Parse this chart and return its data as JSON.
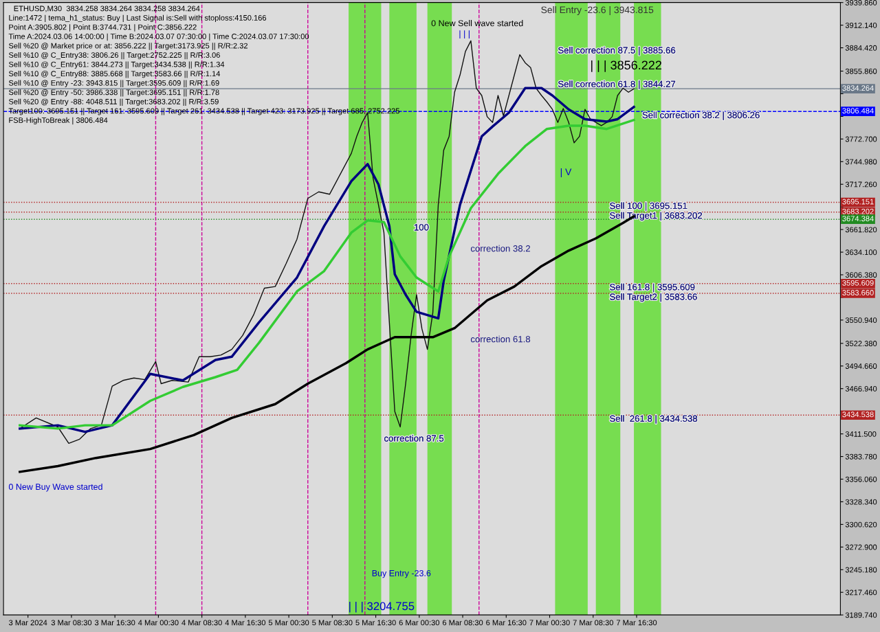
{
  "chart_data": {
    "type": "line",
    "title": "ETHUSD,M30  3834.258 3834.264 3834.258 3834.264",
    "x": [
      "2024-03-02T23:00",
      "2024-03-03T02:00",
      "2024-03-03T06:00",
      "2024-03-03T08:00",
      "2024-03-03T10:00",
      "2024-03-03T12:00",
      "2024-03-03T14:00",
      "2024-03-03T16:00",
      "2024-03-03T18:00",
      "2024-03-03T20:00",
      "2024-03-03T22:00",
      "2024-03-04T00:00",
      "2024-03-04T01:00",
      "2024-03-04T03:00",
      "2024-03-04T06:00",
      "2024-03-04T08:00",
      "2024-03-04T10:00",
      "2024-03-04T12:00",
      "2024-03-04T14:00",
      "2024-03-04T16:00",
      "2024-03-04T18:00",
      "2024-03-04T20:00",
      "2024-03-04T22:00",
      "2024-03-05T00:00",
      "2024-03-05T02:00",
      "2024-03-05T04:00",
      "2024-03-05T06:00",
      "2024-03-05T08:00",
      "2024-03-05T10:00",
      "2024-03-05T12:00",
      "2024-03-05T13:00",
      "2024-03-05T14:00",
      "2024-03-05T15:00",
      "2024-03-05T16:00",
      "2024-03-05T17:00",
      "2024-03-05T18:00",
      "2024-03-05T19:00",
      "2024-03-05T20:00",
      "2024-03-05T21:00",
      "2024-03-05T22:00",
      "2024-03-05T23:00",
      "2024-03-06T00:00",
      "2024-03-06T01:00",
      "2024-03-06T02:00",
      "2024-03-06T03:00",
      "2024-03-06T04:00",
      "2024-03-06T05:00",
      "2024-03-06T06:00",
      "2024-03-06T07:00",
      "2024-03-06T08:00",
      "2024-03-06T09:00",
      "2024-03-06T10:00",
      "2024-03-06T11:00",
      "2024-03-06T12:00",
      "2024-03-06T13:00",
      "2024-03-06T14:00",
      "2024-03-06T15:00",
      "2024-03-06T16:00",
      "2024-03-06T17:00",
      "2024-03-06T18:00",
      "2024-03-06T19:00",
      "2024-03-06T20:00",
      "2024-03-06T21:00",
      "2024-03-06T22:00",
      "2024-03-06T23:00",
      "2024-03-07T00:00",
      "2024-03-07T01:00",
      "2024-03-07T02:00",
      "2024-03-07T03:00",
      "2024-03-07T04:00",
      "2024-03-07T05:00",
      "2024-03-07T06:00",
      "2024-03-07T07:00",
      "2024-03-07T08:00",
      "2024-03-07T09:00",
      "2024-03-07T10:00",
      "2024-03-07T11:00",
      "2024-03-07T12:00",
      "2024-03-07T13:00",
      "2024-03-07T14:00",
      "2024-03-07T15:00",
      "2024-03-07T16:00"
    ],
    "series": [
      {
        "color": "#111111",
        "values": [
          3418,
          3431,
          3420,
          3400,
          3405,
          3418,
          3422,
          3470,
          3477,
          3480,
          3478,
          3500,
          3473,
          3477,
          3475,
          3506,
          3506,
          3508,
          3515,
          3532,
          3557,
          3590,
          3592,
          3620,
          3650,
          3700,
          3708,
          3705,
          3730,
          3755,
          3776,
          3793,
          3805,
          3725,
          3692,
          3658,
          3548,
          3439,
          3420,
          3473,
          3532,
          3582,
          3540,
          3515,
          3560,
          3692,
          3759,
          3776,
          3830,
          3851,
          3880,
          3893,
          3835,
          3826,
          3800,
          3793,
          3826,
          3801,
          3826,
          3851,
          3876,
          3866,
          3860,
          3835,
          3826,
          3818,
          3809,
          3793,
          3810,
          3793,
          3768,
          3776,
          3809,
          3797,
          3793,
          3789,
          3793,
          3800,
          3826,
          3835,
          3830,
          3834.264
        ]
      },
      {
        "color": "#000080",
        "x": [
          "2024-03-02T23:00",
          "2024-03-03T06:00",
          "2024-03-03T11:00",
          "2024-03-03T16:00",
          "2024-03-03T23:00",
          "2024-03-04T05:00",
          "2024-03-04T11:00",
          "2024-03-04T14:00",
          "2024-03-04T19:00",
          "2024-03-05T02:00",
          "2024-03-05T07:00",
          "2024-03-05T12:00",
          "2024-03-05T15:00",
          "2024-03-05T17:00",
          "2024-03-05T19:00",
          "2024-03-05T20:00",
          "2024-03-05T22:00",
          "2024-03-06T00:00",
          "2024-03-06T04:00",
          "2024-03-06T05:00",
          "2024-03-06T08:00",
          "2024-03-06T12:00",
          "2024-03-06T14:00",
          "2024-03-06T17:00",
          "2024-03-06T20:00",
          "2024-03-06T23:00",
          "2024-03-07T01:00",
          "2024-03-07T04:00",
          "2024-03-07T07:00",
          "2024-03-07T11:00",
          "2024-03-07T13:00",
          "2024-03-07T16:00"
        ],
        "values": [
          3418,
          3422,
          3414,
          3422,
          3485,
          3477,
          3502,
          3506,
          3548,
          3603,
          3666,
          3721,
          3742,
          3717,
          3666,
          3607,
          3582,
          3561,
          3553,
          3599,
          3692,
          3776,
          3788,
          3805,
          3835,
          3835,
          3826,
          3809,
          3797,
          3794,
          3797,
          3812
        ]
      },
      {
        "color": "#33cc33",
        "x": [
          "2024-03-02T23:00",
          "2024-03-03T06:00",
          "2024-03-03T11:00",
          "2024-03-03T16:00",
          "2024-03-03T23:00",
          "2024-03-04T05:00",
          "2024-03-04T11:00",
          "2024-03-04T15:00",
          "2024-03-04T19:00",
          "2024-03-05T02:00",
          "2024-03-05T07:00",
          "2024-03-05T12:00",
          "2024-03-05T15:00",
          "2024-03-05T18:00",
          "2024-03-05T21:00",
          "2024-03-06T00:00",
          "2024-03-06T04:00",
          "2024-03-06T06:00",
          "2024-03-06T10:00",
          "2024-03-06T15:00",
          "2024-03-06T20:00",
          "2024-03-07T00:00",
          "2024-03-07T04:00",
          "2024-03-07T07:00",
          "2024-03-07T11:00",
          "2024-03-07T16:00"
        ],
        "values": [
          3422,
          3418,
          3422,
          3422,
          3452,
          3469,
          3481,
          3490,
          3523,
          3586,
          3611,
          3658,
          3673,
          3671,
          3629,
          3603,
          3586,
          3629,
          3688,
          3730,
          3764,
          3785,
          3789,
          3789,
          3785,
          3796
        ]
      },
      {
        "color": "#000000",
        "x": [
          "2024-03-02T23:00",
          "2024-03-03T06:00",
          "2024-03-03T13:00",
          "2024-03-03T23:00",
          "2024-03-04T07:00",
          "2024-03-04T14:00",
          "2024-03-04T22:00",
          "2024-03-05T04:00",
          "2024-03-05T11:00",
          "2024-03-05T15:00",
          "2024-03-05T20:00",
          "2024-03-06T01:00",
          "2024-03-06T03:00",
          "2024-03-06T07:00",
          "2024-03-06T13:00",
          "2024-03-06T18:00",
          "2024-03-06T23:00",
          "2024-03-07T04:00",
          "2024-03-07T09:00",
          "2024-03-07T14:00",
          "2024-03-07T16:00"
        ],
        "values": [
          3365,
          3372,
          3382,
          3393,
          3410,
          3431,
          3448,
          3473,
          3498,
          3515,
          3530,
          3530,
          3530,
          3541,
          3575,
          3592,
          3617,
          3636,
          3651,
          3670,
          3678
        ]
      }
    ],
    "xlim": [
      "2024-03-02T20:00",
      "2024-03-09T06:00"
    ],
    "xticks": [
      {
        "value": "2024-03-03T00:30",
        "label": "3 Mar 2024"
      },
      {
        "value": "2024-03-03T08:30",
        "label": "3 Mar 08:30"
      },
      {
        "value": "2024-03-03T16:30",
        "label": "3 Mar 16:30"
      },
      {
        "value": "2024-03-04T00:30",
        "label": "4 Mar 00:30"
      },
      {
        "value": "2024-03-04T08:30",
        "label": "4 Mar 08:30"
      },
      {
        "value": "2024-03-04T16:30",
        "label": "4 Mar 16:30"
      },
      {
        "value": "2024-03-05T00:30",
        "label": "5 Mar 00:30"
      },
      {
        "value": "2024-03-05T08:30",
        "label": "5 Mar 08:30"
      },
      {
        "value": "2024-03-05T16:30",
        "label": "5 Mar 16:30"
      },
      {
        "value": "2024-03-06T00:30",
        "label": "6 Mar 00:30"
      },
      {
        "value": "2024-03-06T08:30",
        "label": "6 Mar 08:30"
      },
      {
        "value": "2024-03-06T16:30",
        "label": "6 Mar 16:30"
      },
      {
        "value": "2024-03-07T00:30",
        "label": "7 Mar 00:30"
      },
      {
        "value": "2024-03-07T08:30",
        "label": "7 Mar 08:30"
      },
      {
        "value": "2024-03-07T16:30",
        "label": "7 Mar 16:30"
      }
    ],
    "ylim": [
      3189.74,
      3939.86
    ],
    "yticks": [
      {
        "value": 3939.86,
        "label": "3939.860"
      },
      {
        "value": 3912.14,
        "label": "3912.140"
      },
      {
        "value": 3884.42,
        "label": "3884.420"
      },
      {
        "value": 3855.86,
        "label": "3855.860"
      },
      {
        "value": 3828.14,
        "label": null
      },
      {
        "value": 3800.42,
        "label": null
      },
      {
        "value": 3772.7,
        "label": "3772.700"
      },
      {
        "value": 3744.98,
        "label": "3744.980"
      },
      {
        "value": 3717.26,
        "label": "3717.260"
      },
      {
        "value": 3689.54,
        "label": null
      },
      {
        "value": 3661.82,
        "label": "3661.820"
      },
      {
        "value": 3634.1,
        "label": "3634.100"
      },
      {
        "value": 3606.38,
        "label": "3606.380"
      },
      {
        "value": 3578.66,
        "label": null
      },
      {
        "value": 3550.94,
        "label": "3550.940"
      },
      {
        "value": 3522.38,
        "label": "3522.380"
      },
      {
        "value": 3494.66,
        "label": "3494.660"
      },
      {
        "value": 3466.94,
        "label": "3466.940"
      },
      {
        "value": 3439.22,
        "label": null
      },
      {
        "value": 3411.5,
        "label": "3411.500"
      },
      {
        "value": 3383.78,
        "label": "3383.780"
      },
      {
        "value": 3356.06,
        "label": "3356.060"
      },
      {
        "value": 3328.34,
        "label": "3328.340"
      },
      {
        "value": 3300.62,
        "label": "3300.620"
      },
      {
        "value": 3272.9,
        "label": "3272.900"
      },
      {
        "value": 3245.18,
        "label": "3245.180"
      },
      {
        "value": 3217.46,
        "label": "3217.460"
      },
      {
        "value": 3189.74,
        "label": "3189.740"
      }
    ],
    "ref_lines": [
      {
        "axis": "y",
        "value": 3834.264,
        "label": "3834.264",
        "color": "#6a7888",
        "line_style": "solid"
      },
      {
        "axis": "y",
        "value": 3806.484,
        "label": "3806.484",
        "color": "#0000ff",
        "line_style": "dashed"
      },
      {
        "axis": "y",
        "value": 3695.151,
        "label": "3695.151",
        "color": "#b22222",
        "line_style": "dotted"
      },
      {
        "axis": "y",
        "value": 3683.202,
        "label": "3683.202",
        "color": "#b22222",
        "line_style": "dotted"
      },
      {
        "axis": "y",
        "value": 3674.384,
        "label": "3674.384",
        "color": "#228b22",
        "line_style": "dotted"
      },
      {
        "axis": "y",
        "value": 3595.609,
        "label": "3595.609",
        "color": "#b22222",
        "line_style": "dotted"
      },
      {
        "axis": "y",
        "value": 3583.66,
        "label": "3583.660",
        "color": "#b22222",
        "line_style": "dotted"
      },
      {
        "axis": "y",
        "value": 3434.538,
        "label": "3434.538",
        "color": "#b22222",
        "line_style": "dotted"
      },
      {
        "axis": "x",
        "value": "2024-03-04T00:00",
        "color": "#cc0099",
        "line_style": "dashed"
      },
      {
        "axis": "x",
        "value": "2024-03-04T08:30",
        "color": "#cc0099",
        "line_style": "dashed"
      },
      {
        "axis": "x",
        "value": "2024-03-05T04:00",
        "color": "#cc0099",
        "line_style": "dashed"
      },
      {
        "axis": "x",
        "value": "2024-03-05T14:30",
        "color": "#cc0099",
        "line_style": "dashed"
      },
      {
        "axis": "x",
        "value": "2024-03-06T11:30",
        "color": "#cc0099",
        "line_style": "dashed"
      }
    ],
    "bands": [
      {
        "axis": "x",
        "from": "2024-03-05T11:30",
        "to": "2024-03-05T17:30",
        "color": "#55dd22"
      },
      {
        "axis": "x",
        "from": "2024-03-05T19:00",
        "to": "2024-03-06T00:00",
        "color": "#55dd22"
      },
      {
        "axis": "x",
        "from": "2024-03-06T02:00",
        "to": "2024-03-06T06:30",
        "color": "#55dd22"
      },
      {
        "axis": "x",
        "from": "2024-03-07T01:30",
        "to": "2024-03-07T07:30",
        "color": "#55dd22"
      },
      {
        "axis": "x",
        "from": "2024-03-07T09:00",
        "to": "2024-03-07T13:30",
        "color": "#55dd22"
      },
      {
        "axis": "x",
        "from": "2024-03-07T16:00",
        "to": "2024-03-07T21:00",
        "color": "#55dd22"
      }
    ],
    "annotations": [
      "Line:1472 | tema_h1_status: Buy | Last Signal is:Sell with stoploss:4150.166",
      "Point A:3905.802 | Point B:3744.731 | Point C:3856.222",
      "Time A:2024.03.06 14:00:00 | Time B:2024.03.07 07:30:00 | Time C:2024.03.07 17:30:00",
      "Sell %20 @ Market price or at: 3856.222 || Target:3173.925 || R/R:2.32",
      "Sell %10 @ C_Entry38: 3806.26 || Target:2752.225 || R/R:3.06",
      "Sell %10 @ C_Entry61: 3844.273 || Target:3434.538 || R/R:1.34",
      "Sell %10 @ C_Entry88: 3885.668 || Target:3583.66 || R/R:1.14",
      "Sell %10 @ Entry -23: 3943.815 || Target:3595.609 || R/R:1.69",
      "Sell %20 @ Entry -50: 3986.338 || Target:3695.151 || R/R:1.78",
      "Sell %20 @ Entry -88: 4048.511 || Target:3683.202 || R/R:3.59",
      "Target100: 3695.151 || Target 161: 3595.609 || Target 261: 3434.538 || Target 423: 3173.925 || Target 685: 2752.225",
      "FSB-HighToBreak | 3806.484",
      "0 New Sell wave started",
      "| | |",
      "0 New Buy Wave started",
      "| | | 3204.755",
      "Buy Entry -23.6",
      "Sell Entry -23.6 | 3943.815",
      "| | | 3856.222",
      "| V",
      "correction 38.2",
      "correction 61.8",
      {
        "text": "100",
        "x": "2024-03-05T23:30",
        "y": 3668.8
      },
      {
        "text": "correction 87.5",
        "x": "2024-03-05T18:00",
        "y": 3410.3
      },
      {
        "text": "Sell correction 87.5 | 3885.66",
        "x": "2024-03-07T02:00",
        "y": 3885.66
      },
      {
        "text": "Sell correction 61.8 | 3844.27",
        "x": "2024-03-07T02:00",
        "y": 3844.27
      },
      {
        "text": "Sell correction 38.2 | 3806.26",
        "x": "2024-03-07T17:30",
        "y": 3806.26
      },
      {
        "text": "Sell 100 | 3695.151",
        "x": "2024-03-07T11:30",
        "y": 3695.151
      },
      {
        "text": "Sell Target1 | 3683.202",
        "x": "2024-03-07T11:30",
        "y": 3683.202
      },
      {
        "text": "Sell 161.8 | 3595.609",
        "x": "2024-03-07T11:30",
        "y": 3595.609
      },
      {
        "text": "Sell Target2 | 3583.66",
        "x": "2024-03-07T11:30",
        "y": 3583.66
      },
      {
        "text": "Sell  261.8 | 3434.538",
        "x": "2024-03-07T11:30",
        "y": 3434.538
      }
    ]
  }
}
